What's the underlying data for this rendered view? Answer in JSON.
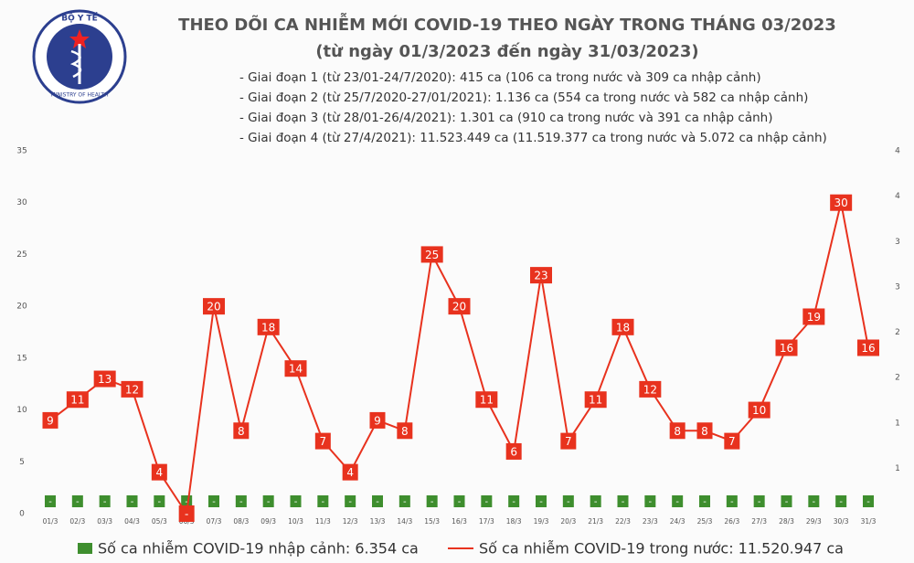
{
  "logo": {
    "top": "BỘ Y TẾ",
    "bottom": "MINISTRY OF HEALTH"
  },
  "chart_data": {
    "type": "line",
    "title": "THEO DÕI CA NHIỄM MỚI COVID-19 THEO NGÀY TRONG THÁNG 03/2023",
    "subtitle": "(từ ngày 01/3/2023 đến ngày 31/03/2023)",
    "notes": [
      "- Giai đoạn 1 (từ 23/01-24/7/2020): 415 ca (106 ca trong nước và 309 ca nhập cảnh)",
      "- Giai đoạn 2 (từ 25/7/2020-27/01/2021): 1.136 ca (554 ca trong nước và 582 ca nhập cảnh)",
      "- Giai đoạn 3 (từ 28/01-26/4/2021): 1.301 ca (910 ca trong nước và 391 ca nhập cảnh)",
      "- Giai đoạn 4 (từ 27/4/2021): 11.523.449 ca (11.519.377 ca trong nước và 5.072 ca nhập cảnh)"
    ],
    "categories": [
      "01/3",
      "02/3",
      "03/3",
      "04/3",
      "05/3",
      "06/3",
      "07/3",
      "08/3",
      "09/3",
      "10/3",
      "11/3",
      "12/3",
      "13/3",
      "14/3",
      "15/3",
      "16/3",
      "17/3",
      "18/3",
      "19/3",
      "20/3",
      "21/3",
      "22/3",
      "23/3",
      "24/3",
      "25/3",
      "26/3",
      "27/3",
      "28/3",
      "29/3",
      "30/3",
      "31/3"
    ],
    "series": [
      {
        "name": "Số ca nhiễm COVID-19 nhập cảnh: 6.354 ca",
        "type": "bar",
        "axis": "y2",
        "color": "#3e8e2e",
        "values": [
          0,
          0,
          0,
          0,
          0,
          0,
          0,
          0,
          0,
          0,
          0,
          0,
          0,
          0,
          0,
          0,
          0,
          0,
          0,
          0,
          0,
          0,
          0,
          0,
          0,
          0,
          0,
          0,
          0,
          0,
          0
        ],
        "value_labels": [
          "-",
          "-",
          "-",
          "-",
          "-",
          "-",
          "-",
          "-",
          "-",
          "-",
          "-",
          "-",
          "-",
          "-",
          "-",
          "-",
          "-",
          "-",
          "-",
          "-",
          "-",
          "-",
          "-",
          "-",
          "-",
          "-",
          "-",
          "-",
          "-",
          "-",
          "-"
        ]
      },
      {
        "name": "Số ca nhiễm COVID-19 trong nước: 11.520.947 ca",
        "type": "line",
        "color": "#e8321e",
        "values": [
          9,
          11,
          13,
          12,
          4,
          0,
          20,
          8,
          18,
          14,
          7,
          4,
          9,
          8,
          25,
          20,
          11,
          6,
          23,
          7,
          11,
          18,
          12,
          8,
          8,
          7,
          10,
          16,
          19,
          30,
          16
        ],
        "value_labels": [
          "9",
          "11",
          "13",
          "12",
          "4",
          "-",
          "20",
          "8",
          "18",
          "14",
          "7",
          "4",
          "9",
          "8",
          "25",
          "20",
          "11",
          "6",
          "23",
          "7",
          "11",
          "18",
          "12",
          "8",
          "8",
          "7",
          "10",
          "16",
          "19",
          "30",
          "16"
        ]
      }
    ],
    "ylim": [
      0,
      35
    ],
    "yticks": [
      0,
      5,
      10,
      15,
      20,
      25,
      30,
      35
    ],
    "y2lim": [
      0,
      4
    ],
    "y2ticks": [
      {
        "value": 0.5,
        "label": "1"
      },
      1,
      {
        "value": 1.5,
        "label": "2"
      },
      2,
      {
        "value": 2.5,
        "label": "3"
      },
      3,
      {
        "value": 3.5,
        "label": "4"
      },
      4
    ]
  }
}
